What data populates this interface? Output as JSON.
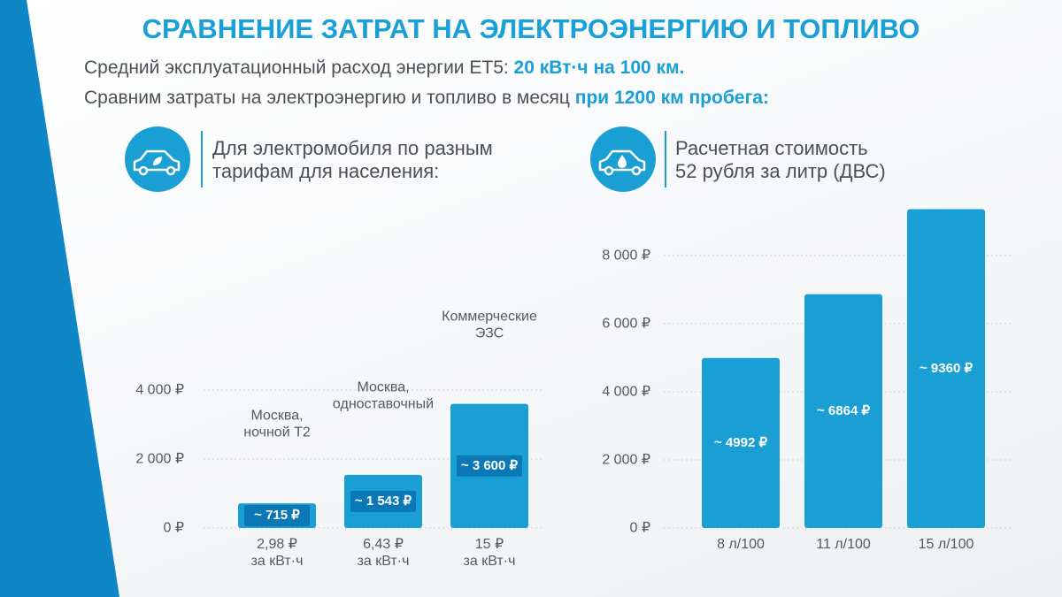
{
  "header": {
    "title": "СРАВНЕНИЕ ЗАТРАТ НА ЭЛЕКТРОЭНЕРГИЮ И ТОПЛИВО",
    "lines": [
      [
        "Средний эксплуатационный расход энергии ET5: ",
        "20 кВт·ч на 100 км."
      ],
      [
        "Сравним затраты на электроэнергию и топливо в месяц ",
        "при 1200 км пробега:"
      ]
    ]
  },
  "chart_data": [
    {
      "type": "bar",
      "title": "Для электромобиля по разным\nтарифам для населения:",
      "categories": [
        "2,98 ₽\nза кВт·ч",
        "6,43 ₽\nза кВт·ч",
        "15 ₽\nза кВт·ч"
      ],
      "annotations": [
        "Москва,\nночной Т2",
        "Москва,\nодноставочный",
        "Коммерческие\nЭЗС"
      ],
      "values": [
        715,
        1543,
        3600
      ],
      "value_labels": [
        "~ 715 ₽",
        "~ 1 543 ₽",
        "~ 3 600 ₽"
      ],
      "color": "#1a9fd4",
      "ylim": [
        0,
        4000
      ],
      "yticks": [
        {
          "value": 0,
          "label": "0 ₽"
        },
        {
          "value": 2000,
          "label": "2 000 ₽"
        },
        {
          "value": 4000,
          "label": "4 000 ₽"
        }
      ],
      "grid": true
    },
    {
      "type": "bar",
      "title": "Расчетная стоимость\n52 рубля за литр (ДВС)",
      "categories": [
        "8 л/100",
        "11 л/100",
        "15 л/100"
      ],
      "values": [
        4992,
        6864,
        9360
      ],
      "value_labels": [
        "~ 4992 ₽",
        "~ 6864 ₽",
        "~ 9360 ₽"
      ],
      "color": "#1a9fd4",
      "ylim": [
        0,
        9400
      ],
      "yticks": [
        {
          "value": 0,
          "label": "0 ₽"
        },
        {
          "value": 2000,
          "label": "2 000 ₽"
        },
        {
          "value": 4000,
          "label": "4 000 ₽"
        },
        {
          "value": 6000,
          "label": "6 000 ₽"
        },
        {
          "value": 8000,
          "label": "8 000 ₽"
        }
      ],
      "grid": true
    }
  ]
}
